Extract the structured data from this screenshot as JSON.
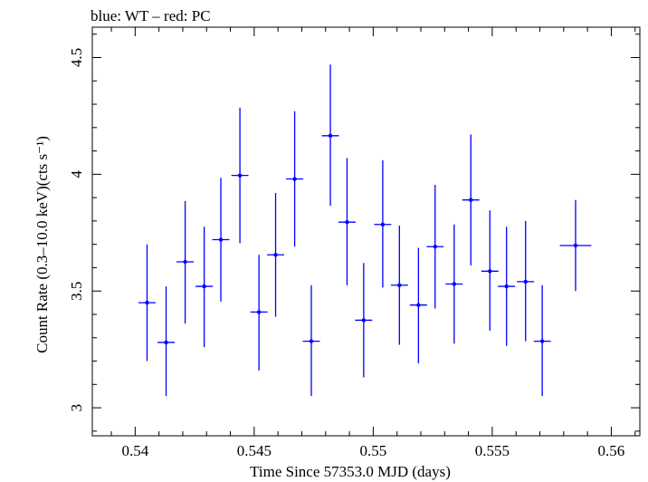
{
  "chart_data": {
    "type": "scatter",
    "title": "blue: WT – red: PC",
    "xlabel": "Time Since 57353.0 MJD (days)",
    "ylabel": "Count Rate (0.3–10.0 keV)(cts s⁻¹)",
    "xlim": [
      0.5382,
      0.5612
    ],
    "ylim": [
      2.88,
      4.63
    ],
    "xticks": [
      0.54,
      0.545,
      0.55,
      0.555,
      0.56
    ],
    "xtick_labels": [
      "0.54",
      "0.545",
      "0.55",
      "0.555",
      "0.56"
    ],
    "yticks": [
      3,
      3.5,
      4,
      4.5
    ],
    "ytick_labels": [
      "3",
      "3.5",
      "4",
      "4.5"
    ],
    "grid": false,
    "series": [
      {
        "color": "#0000ff",
        "points": [
          {
            "x": 0.5405,
            "y": 3.45,
            "xerr": 0.00036,
            "ylo": 3.2,
            "yhi": 3.7
          },
          {
            "x": 0.5413,
            "y": 3.28,
            "xerr": 0.00036,
            "ylo": 3.05,
            "yhi": 3.52
          },
          {
            "x": 0.5421,
            "y": 3.625,
            "xerr": 0.00036,
            "ylo": 3.36,
            "yhi": 3.885
          },
          {
            "x": 0.5429,
            "y": 3.52,
            "xerr": 0.00036,
            "ylo": 3.26,
            "yhi": 3.775
          },
          {
            "x": 0.5436,
            "y": 3.72,
            "xerr": 0.00036,
            "ylo": 3.455,
            "yhi": 3.985
          },
          {
            "x": 0.5444,
            "y": 3.995,
            "xerr": 0.00036,
            "ylo": 3.705,
            "yhi": 4.285
          },
          {
            "x": 0.5452,
            "y": 3.41,
            "xerr": 0.00036,
            "ylo": 3.16,
            "yhi": 3.655
          },
          {
            "x": 0.5459,
            "y": 3.655,
            "xerr": 0.00036,
            "ylo": 3.39,
            "yhi": 3.92
          },
          {
            "x": 0.5467,
            "y": 3.98,
            "xerr": 0.00036,
            "ylo": 3.69,
            "yhi": 4.27
          },
          {
            "x": 0.5474,
            "y": 3.285,
            "xerr": 0.00036,
            "ylo": 3.05,
            "yhi": 3.525
          },
          {
            "x": 0.5482,
            "y": 4.165,
            "xerr": 0.00036,
            "ylo": 3.865,
            "yhi": 4.47
          },
          {
            "x": 0.5489,
            "y": 3.795,
            "xerr": 0.00036,
            "ylo": 3.525,
            "yhi": 4.07
          },
          {
            "x": 0.5496,
            "y": 3.375,
            "xerr": 0.00036,
            "ylo": 3.13,
            "yhi": 3.62
          },
          {
            "x": 0.5504,
            "y": 3.785,
            "xerr": 0.00036,
            "ylo": 3.515,
            "yhi": 4.06
          },
          {
            "x": 0.5511,
            "y": 3.525,
            "xerr": 0.00036,
            "ylo": 3.27,
            "yhi": 3.78
          },
          {
            "x": 0.5519,
            "y": 3.44,
            "xerr": 0.00036,
            "ylo": 3.19,
            "yhi": 3.685
          },
          {
            "x": 0.5526,
            "y": 3.69,
            "xerr": 0.00036,
            "ylo": 3.425,
            "yhi": 3.955
          },
          {
            "x": 0.5534,
            "y": 3.53,
            "xerr": 0.00036,
            "ylo": 3.275,
            "yhi": 3.785
          },
          {
            "x": 0.5541,
            "y": 3.89,
            "xerr": 0.00036,
            "ylo": 3.61,
            "yhi": 4.17
          },
          {
            "x": 0.5549,
            "y": 3.585,
            "xerr": 0.00036,
            "ylo": 3.33,
            "yhi": 3.845
          },
          {
            "x": 0.5556,
            "y": 3.52,
            "xerr": 0.00036,
            "ylo": 3.265,
            "yhi": 3.775
          },
          {
            "x": 0.5564,
            "y": 3.54,
            "xerr": 0.00036,
            "ylo": 3.285,
            "yhi": 3.8
          },
          {
            "x": 0.5571,
            "y": 3.285,
            "xerr": 0.00036,
            "ylo": 3.05,
            "yhi": 3.525
          },
          {
            "x": 0.5585,
            "y": 3.695,
            "xerr": 0.00066,
            "ylo": 3.5,
            "yhi": 3.89
          }
        ]
      }
    ]
  }
}
